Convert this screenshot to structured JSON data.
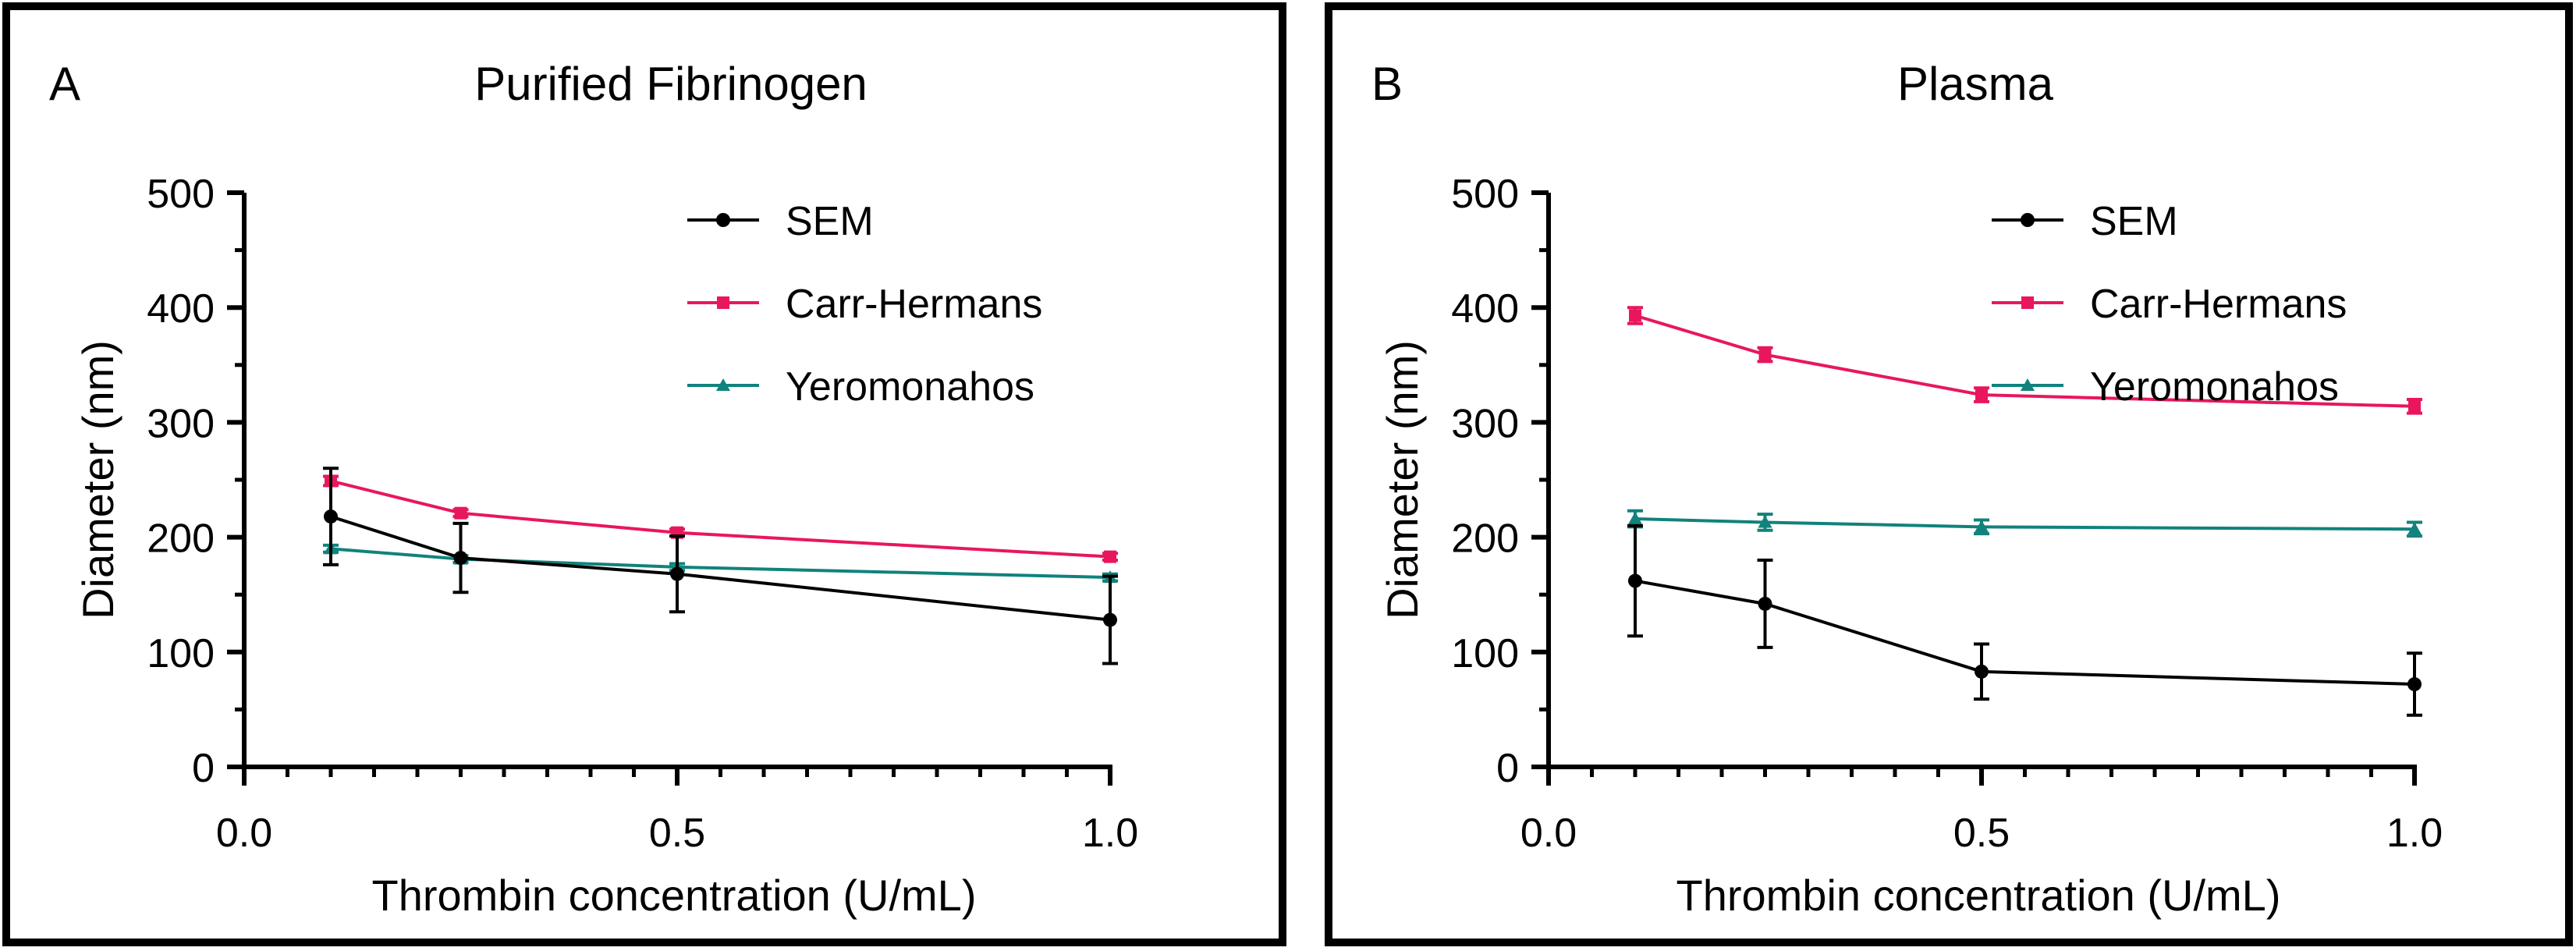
{
  "colors": {
    "sem": "#000000",
    "carr_hermans": "#e8175d",
    "yeromonahos": "#11827c",
    "frame": "#000000"
  },
  "chart_data": [
    {
      "type": "line",
      "panel_label": "A",
      "title": "Purified Fibrinogen",
      "xlabel": "Thrombin concentration (U/mL)",
      "ylabel": "Diameter (nm)",
      "xlim": [
        0.0,
        1.0
      ],
      "ylim": [
        0,
        500
      ],
      "x_ticks": [
        0.0,
        0.5,
        1.0
      ],
      "x_tick_labels": [
        "0.0",
        "0.5",
        "1.0"
      ],
      "y_ticks": [
        0,
        100,
        200,
        300,
        400,
        500
      ],
      "y_tick_labels": [
        "0",
        "100",
        "200",
        "300",
        "400",
        "500"
      ],
      "legend_position": "top-right",
      "series": [
        {
          "name": "SEM",
          "color_key": "sem",
          "marker": "circle",
          "x": [
            0.1,
            0.25,
            0.5,
            1.0
          ],
          "values": [
            218,
            182,
            168,
            128
          ],
          "errors": [
            42,
            30,
            33,
            38
          ]
        },
        {
          "name": "Carr-Hermans",
          "color_key": "carr_hermans",
          "marker": "square",
          "x": [
            0.1,
            0.25,
            0.5,
            1.0
          ],
          "values": [
            249,
            221,
            204,
            183
          ],
          "errors": [
            4,
            3,
            3,
            3
          ]
        },
        {
          "name": "Yeromonahos",
          "color_key": "yeromonahos",
          "marker": "triangle",
          "x": [
            0.1,
            0.25,
            0.5,
            1.0
          ],
          "values": [
            190,
            181,
            174,
            165
          ],
          "errors": [
            3,
            3,
            3,
            3
          ]
        }
      ]
    },
    {
      "type": "line",
      "panel_label": "B",
      "title": "Plasma",
      "xlabel": "Thrombin concentration (U/mL)",
      "ylabel": "Diameter (nm)",
      "xlim": [
        0.0,
        1.0
      ],
      "ylim": [
        0,
        500
      ],
      "x_ticks": [
        0.0,
        0.5,
        1.0
      ],
      "x_tick_labels": [
        "0.0",
        "0.5",
        "1.0"
      ],
      "y_ticks": [
        0,
        100,
        200,
        300,
        400,
        500
      ],
      "y_tick_labels": [
        "0",
        "100",
        "200",
        "300",
        "400",
        "500"
      ],
      "legend_position": "top-right",
      "series": [
        {
          "name": "SEM",
          "color_key": "sem",
          "marker": "circle",
          "x": [
            0.1,
            0.25,
            0.5,
            1.0
          ],
          "values": [
            162,
            142,
            83,
            72
          ],
          "errors": [
            48,
            38,
            24,
            27
          ]
        },
        {
          "name": "Carr-Hermans",
          "color_key": "carr_hermans",
          "marker": "square",
          "x": [
            0.1,
            0.25,
            0.5,
            1.0
          ],
          "values": [
            393,
            359,
            324,
            314
          ],
          "errors": [
            7,
            6,
            6,
            6
          ]
        },
        {
          "name": "Yeromonahos",
          "color_key": "yeromonahos",
          "marker": "triangle",
          "x": [
            0.1,
            0.25,
            0.5,
            1.0
          ],
          "values": [
            216,
            213,
            209,
            207
          ],
          "errors": [
            7,
            7,
            6,
            6
          ]
        }
      ]
    }
  ]
}
